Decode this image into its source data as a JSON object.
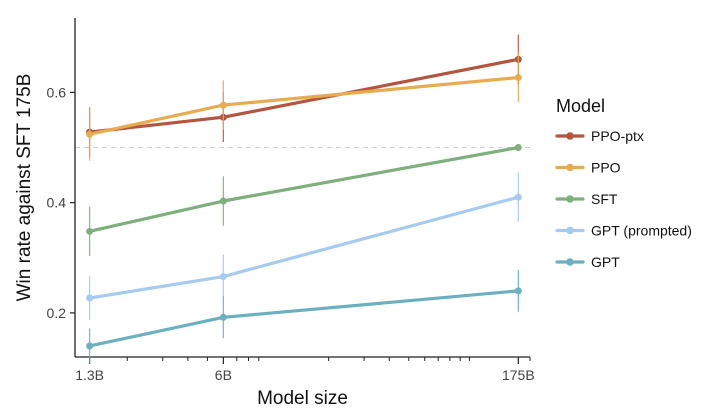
{
  "chart_data": {
    "type": "line",
    "xlabel": "Model size",
    "ylabel": "Win rate against SFT 175B",
    "x_scale": "log",
    "x": [
      "1.3B",
      "6B",
      "175B"
    ],
    "x_values": [
      1.3,
      6,
      175
    ],
    "xlim": [
      1.1,
      200
    ],
    "ylim": [
      0.12,
      0.735
    ],
    "yticks": [
      0.2,
      0.4,
      0.6
    ],
    "ytick_labels": [
      "0.2",
      "0.4",
      "0.6"
    ],
    "reference_line": 0.5,
    "legend": {
      "title": "Model",
      "position": "right"
    },
    "series": [
      {
        "name": "PPO-ptx",
        "color": "#b5553f",
        "values": [
          0.528,
          0.555,
          0.66
        ],
        "err": [
          0.045,
          0.045,
          0.045
        ]
      },
      {
        "name": "PPO",
        "color": "#e8ac50",
        "values": [
          0.524,
          0.577,
          0.627
        ],
        "err": [
          0.048,
          0.045,
          0.045
        ]
      },
      {
        "name": "SFT",
        "color": "#7faf7d",
        "values": [
          0.348,
          0.403,
          0.5
        ],
        "err": [
          0.045,
          0.045,
          0.0
        ]
      },
      {
        "name": "GPT (prompted)",
        "color": "#a6cbee",
        "values": [
          0.227,
          0.266,
          0.41
        ],
        "err": [
          0.04,
          0.04,
          0.045
        ]
      },
      {
        "name": "GPT",
        "color": "#6cb0c0",
        "values": [
          0.14,
          0.192,
          0.24
        ],
        "err": [
          0.032,
          0.038,
          0.038
        ]
      }
    ]
  }
}
